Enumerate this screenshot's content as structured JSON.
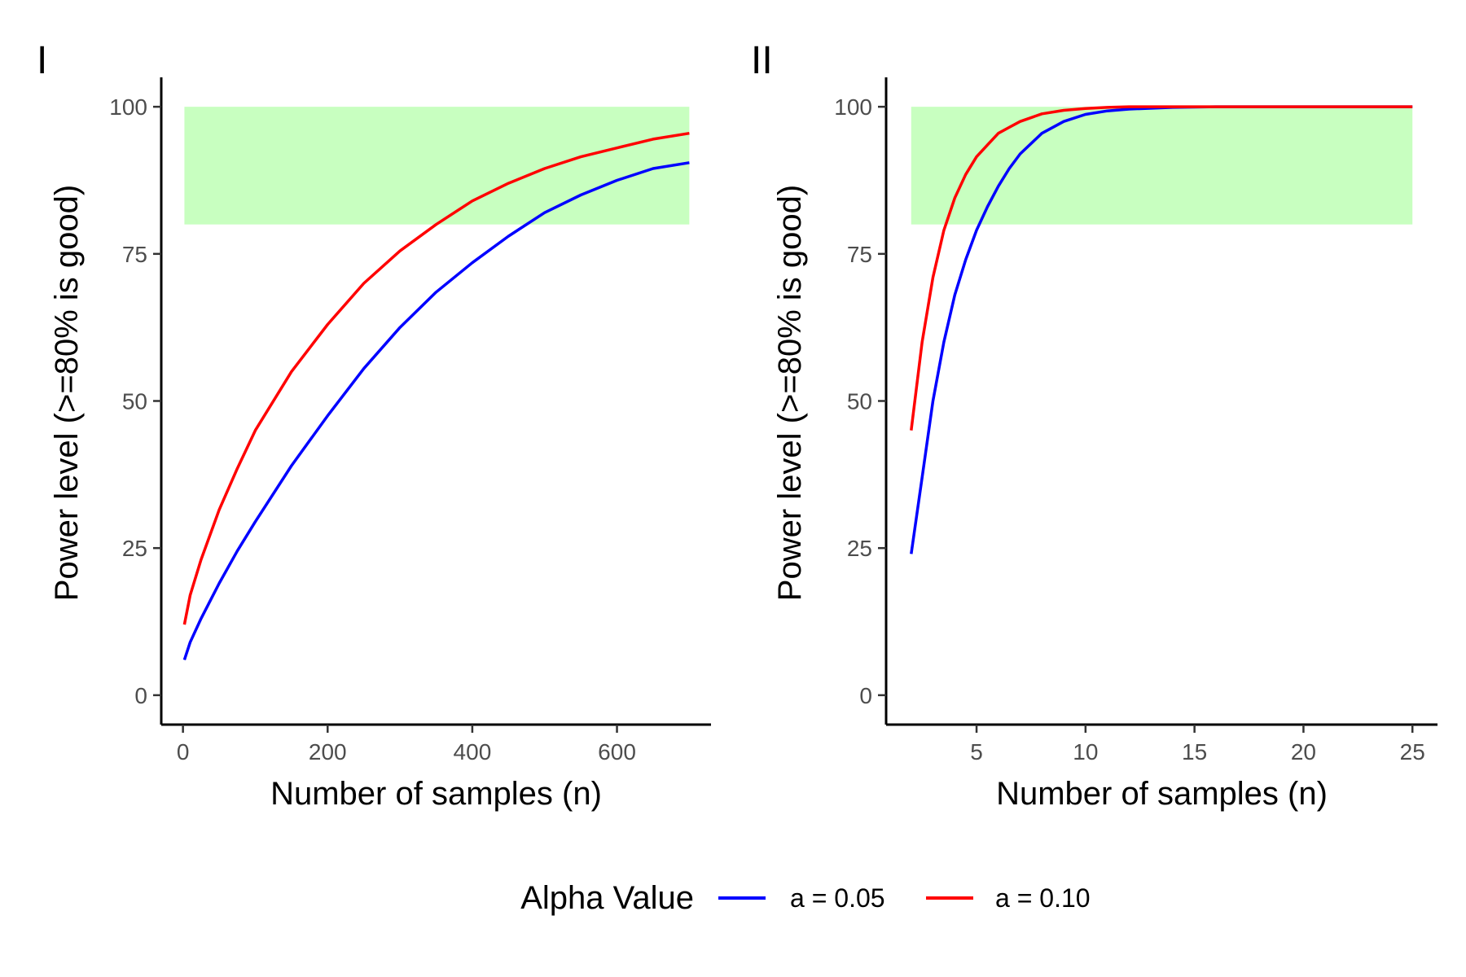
{
  "legend": {
    "title": "Alpha Value",
    "placement": "bottom",
    "entries": [
      {
        "label": "a = 0.05",
        "color": "#0000ff"
      },
      {
        "label": "a = 0.10",
        "color": "#ff0000"
      }
    ]
  },
  "good_zone_color": "#c8ffc0",
  "chart_data": [
    {
      "type": "line",
      "panel_tag": "I",
      "xlabel": "Number of samples (n)",
      "ylabel": "Power level (>=80% is good)",
      "xlim": [
        -30,
        730
      ],
      "ylim": [
        -5,
        105
      ],
      "xticks": [
        0,
        200,
        400,
        600
      ],
      "yticks": [
        0,
        25,
        50,
        75,
        100
      ],
      "grid": false,
      "good_zone": {
        "x": [
          2,
          700
        ],
        "y": [
          80,
          100
        ]
      },
      "series": [
        {
          "name": "a = 0.05",
          "color": "#0000ff",
          "x": [
            2,
            10,
            25,
            50,
            75,
            100,
            150,
            200,
            250,
            300,
            350,
            400,
            450,
            500,
            550,
            600,
            650,
            700
          ],
          "y": [
            6,
            9,
            13,
            19,
            24.5,
            29.5,
            39,
            47.5,
            55.5,
            62.5,
            68.5,
            73.5,
            78,
            82,
            85,
            87.5,
            89.5,
            90.5
          ]
        },
        {
          "name": "a = 0.10",
          "color": "#ff0000",
          "x": [
            2,
            10,
            25,
            50,
            75,
            100,
            150,
            200,
            250,
            300,
            350,
            400,
            450,
            500,
            550,
            600,
            650,
            700
          ],
          "y": [
            12,
            17,
            23,
            31.5,
            38.5,
            45,
            55,
            63,
            70,
            75.5,
            80,
            84,
            87,
            89.5,
            91.5,
            93,
            94.5,
            95.5
          ]
        }
      ]
    },
    {
      "type": "line",
      "panel_tag": "II",
      "xlabel": "Number of samples (n)",
      "ylabel": "Power level (>=80% is good)",
      "xlim": [
        0.85,
        26.15
      ],
      "ylim": [
        -5,
        105
      ],
      "xticks": [
        5,
        10,
        15,
        20,
        25
      ],
      "yticks": [
        0,
        25,
        50,
        75,
        100
      ],
      "grid": false,
      "good_zone": {
        "x": [
          2,
          25
        ],
        "y": [
          80,
          100
        ]
      },
      "series": [
        {
          "name": "a = 0.05",
          "color": "#0000ff",
          "x": [
            2,
            2.5,
            3,
            3.5,
            4,
            4.5,
            5,
            5.5,
            6,
            6.5,
            7,
            8,
            9,
            10,
            11,
            12,
            14,
            16,
            20,
            25
          ],
          "y": [
            24,
            37,
            50,
            60,
            68,
            74,
            79,
            83,
            86.5,
            89.5,
            92,
            95.5,
            97.5,
            98.7,
            99.3,
            99.6,
            99.9,
            100,
            100,
            100
          ]
        },
        {
          "name": "a = 0.10",
          "color": "#ff0000",
          "x": [
            2,
            2.5,
            3,
            3.5,
            4,
            4.5,
            5,
            5.5,
            6,
            6.5,
            7,
            8,
            9,
            10,
            11,
            12,
            14,
            16,
            20,
            25
          ],
          "y": [
            45,
            60,
            71,
            79,
            84.5,
            88.5,
            91.5,
            93.5,
            95.5,
            96.5,
            97.5,
            98.8,
            99.4,
            99.7,
            99.9,
            100,
            100,
            100,
            100,
            100
          ]
        }
      ]
    }
  ]
}
